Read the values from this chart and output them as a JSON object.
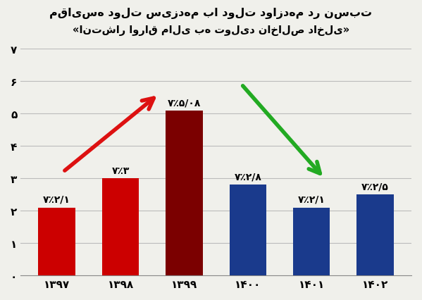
{
  "title_line1": "مقایسه دولت سیزدهم با دولت دوازدهم در نسبت",
  "title_line2": "«انتشار اوراق مالی به تولید ناخالص داخلی»",
  "categories": [
    "۱۳۹۷",
    "۱۳۹۸",
    "۱۳۹۹",
    "۱۴۰۰",
    "۱۴۰۱",
    "۱۴۰۲"
  ],
  "values": [
    2.1,
    3.0,
    5.08,
    2.8,
    2.1,
    2.5
  ],
  "bar_colors": [
    "#cc0000",
    "#cc0000",
    "#7b0000",
    "#1a3a8c",
    "#1a3a8c",
    "#1a3a8c"
  ],
  "labels": [
    "۷٪۲/۱",
    "۷٪۳",
    "۷٪۵/۰۸",
    "۷٪۲/۸",
    "۷٪۲/۱",
    "۷٪۲/۵"
  ],
  "ylim": [
    0,
    7
  ],
  "yticks": [
    0,
    1,
    2,
    3,
    4,
    5,
    6,
    7
  ],
  "ytick_labels": [
    "۰",
    "۱",
    "۲",
    "۳",
    "۴",
    "۵",
    "۶",
    "۷"
  ],
  "background_color": "#f0f0eb",
  "grid_color": "#bbbbbb",
  "arrow_up_color": "#dd1111",
  "arrow_down_color": "#22aa22"
}
